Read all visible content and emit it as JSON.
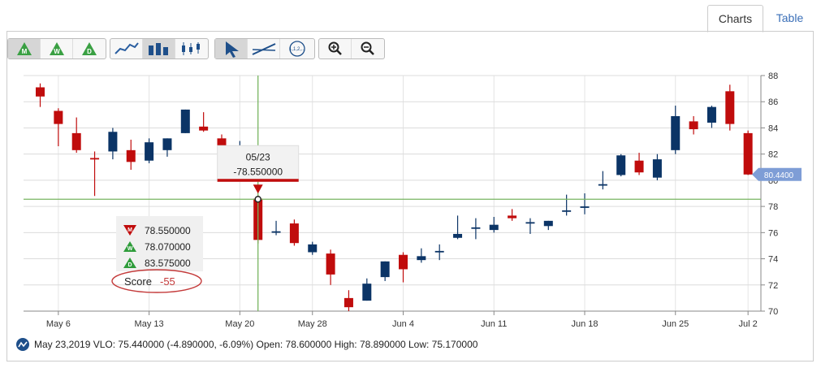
{
  "tabs": [
    {
      "label": "Charts",
      "active": true
    },
    {
      "label": "Table",
      "active": false
    }
  ],
  "toolbar": {
    "period_buttons": [
      "M",
      "W",
      "D"
    ],
    "chart_type_icons": [
      "line-chart-icon",
      "bar-chart-icon",
      "candlestick-icon"
    ],
    "tool_icons": [
      "pointer-icon",
      "trendline-icon",
      "fibonacci-icon"
    ],
    "fib_label": "1,1,2,...",
    "zoom_icons": [
      "zoom-in-icon",
      "zoom-out-icon"
    ]
  },
  "colors": {
    "up": "#0b3466",
    "down": "#c00c0c",
    "crosshair": "#77b560",
    "price_tag": "#7e9dd6",
    "score": "#c43a3a"
  },
  "chart_data": {
    "type": "candlestick",
    "x_ticks": [
      {
        "i": 1,
        "label": "May 6"
      },
      {
        "i": 6,
        "label": "May 13"
      },
      {
        "i": 11,
        "label": "May 20"
      },
      {
        "i": 15,
        "label": "May 28"
      },
      {
        "i": 20,
        "label": "Jun 4"
      },
      {
        "i": 25,
        "label": "Jun 11"
      },
      {
        "i": 30,
        "label": "Jun 18"
      },
      {
        "i": 35,
        "label": "Jun 25"
      },
      {
        "i": 39,
        "label": "Jul 2"
      }
    ],
    "y_axis": {
      "min": 70,
      "max": 88,
      "ticks": [
        70,
        72,
        74,
        76,
        78,
        80,
        82,
        84,
        86,
        88
      ],
      "side": "right"
    },
    "grid": true,
    "ohlc": [
      {
        "o": 87.1,
        "h": 87.4,
        "l": 85.6,
        "c": 86.4
      },
      {
        "o": 85.3,
        "h": 85.5,
        "l": 82.6,
        "c": 84.3
      },
      {
        "o": 83.6,
        "h": 84.8,
        "l": 82.1,
        "c": 82.3
      },
      {
        "o": 81.7,
        "h": 82.2,
        "l": 78.8,
        "c": 81.6
      },
      {
        "o": 82.2,
        "h": 84.0,
        "l": 81.6,
        "c": 83.7
      },
      {
        "o": 82.3,
        "h": 83.1,
        "l": 80.8,
        "c": 81.4
      },
      {
        "o": 81.5,
        "h": 83.2,
        "l": 81.3,
        "c": 82.9
      },
      {
        "o": 82.3,
        "h": 83.2,
        "l": 81.8,
        "c": 83.2
      },
      {
        "o": 83.6,
        "h": 85.4,
        "l": 83.6,
        "c": 85.4
      },
      {
        "o": 84.1,
        "h": 85.2,
        "l": 83.7,
        "c": 83.8
      },
      {
        "o": 83.2,
        "h": 83.5,
        "l": 81.8,
        "c": 82.1
      },
      {
        "o": 82.6,
        "h": 83.0,
        "l": 82.0,
        "c": 82.6
      },
      {
        "o": 78.6,
        "h": 78.89,
        "l": 75.17,
        "c": 75.44
      },
      {
        "o": 76.1,
        "h": 76.9,
        "l": 75.8,
        "c": 76.1
      },
      {
        "o": 76.7,
        "h": 77.0,
        "l": 75.0,
        "c": 75.2
      },
      {
        "o": 74.5,
        "h": 75.3,
        "l": 74.3,
        "c": 75.1
      },
      {
        "o": 74.4,
        "h": 74.7,
        "l": 72.0,
        "c": 72.8
      },
      {
        "o": 71.0,
        "h": 71.6,
        "l": 70.0,
        "c": 70.3
      },
      {
        "o": 70.8,
        "h": 72.5,
        "l": 70.8,
        "c": 72.1
      },
      {
        "o": 72.6,
        "h": 73.8,
        "l": 72.3,
        "c": 73.8
      },
      {
        "o": 74.3,
        "h": 74.5,
        "l": 72.2,
        "c": 73.2
      },
      {
        "o": 73.9,
        "h": 74.8,
        "l": 73.7,
        "c": 74.2
      },
      {
        "o": 74.5,
        "h": 75.1,
        "l": 73.9,
        "c": 74.6
      },
      {
        "o": 75.6,
        "h": 77.3,
        "l": 75.5,
        "c": 75.9
      },
      {
        "o": 76.4,
        "h": 77.1,
        "l": 75.5,
        "c": 76.4
      },
      {
        "o": 76.2,
        "h": 77.2,
        "l": 76.0,
        "c": 76.6
      },
      {
        "o": 77.3,
        "h": 77.8,
        "l": 76.9,
        "c": 77.1
      },
      {
        "o": 76.8,
        "h": 77.1,
        "l": 75.9,
        "c": 76.8
      },
      {
        "o": 76.5,
        "h": 76.9,
        "l": 76.2,
        "c": 76.9
      },
      {
        "o": 77.6,
        "h": 78.9,
        "l": 77.3,
        "c": 77.7
      },
      {
        "o": 78.0,
        "h": 79.0,
        "l": 77.4,
        "c": 78.0
      },
      {
        "o": 79.6,
        "h": 80.7,
        "l": 79.3,
        "c": 79.7
      },
      {
        "o": 80.4,
        "h": 82.0,
        "l": 80.3,
        "c": 81.9
      },
      {
        "o": 81.5,
        "h": 82.1,
        "l": 80.4,
        "c": 80.6
      },
      {
        "o": 80.2,
        "h": 82.0,
        "l": 80.0,
        "c": 81.6
      },
      {
        "o": 82.3,
        "h": 85.7,
        "l": 82.0,
        "c": 84.9
      },
      {
        "o": 84.5,
        "h": 84.9,
        "l": 83.5,
        "c": 83.9
      },
      {
        "o": 84.4,
        "h": 85.7,
        "l": 84.0,
        "c": 85.6
      },
      {
        "o": 86.8,
        "h": 87.3,
        "l": 83.8,
        "c": 84.3
      },
      {
        "o": 83.6,
        "h": 83.8,
        "l": 80.4,
        "c": 80.44
      }
    ],
    "crosshair": {
      "index": 12,
      "price": 78.55,
      "date_label": "05/23",
      "value_label": "-78.550000"
    },
    "last_price_tag": "80.4400",
    "signals": [
      {
        "letter": "M",
        "value": "78.550000",
        "color": "#c00c0c"
      },
      {
        "letter": "W",
        "value": "78.070000",
        "color": "#2e9c3a"
      },
      {
        "letter": "D",
        "value": "83.575000",
        "color": "#2e9c3a"
      }
    ],
    "score_label": "Score",
    "score_value": "-55"
  },
  "footer": {
    "info": "May 23,2019 VLO: 75.440000 (-4.890000, -6.09%) Open: 78.600000 High: 78.890000 Low: 75.170000"
  }
}
